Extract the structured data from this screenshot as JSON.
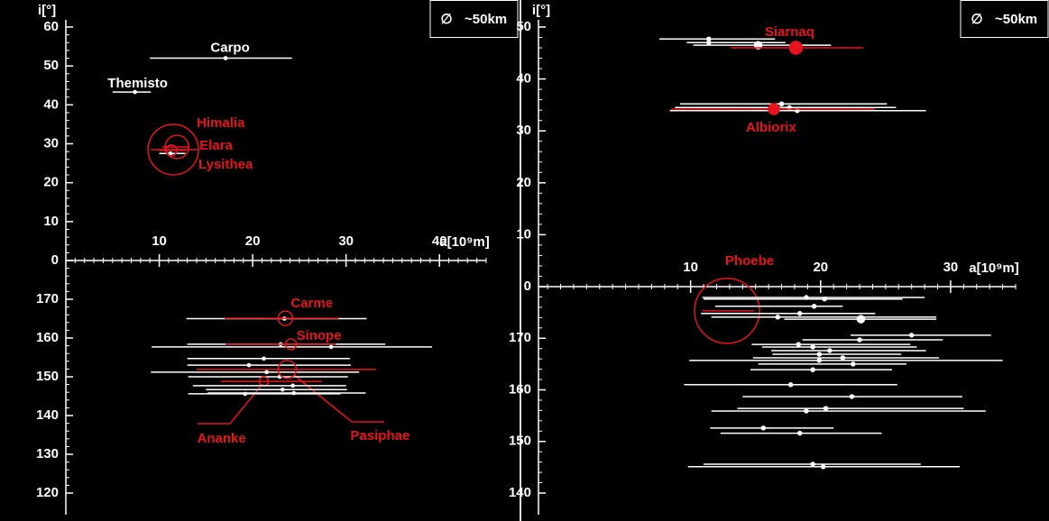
{
  "chart_data": [
    {
      "type": "orbit",
      "ylabel": "i[°]",
      "xlabel": "a[10⁹m]",
      "legend_symbol": "∅",
      "legend": "~50km",
      "legend_loc": "upper right",
      "color": "#ffffff",
      "xlim": [
        0,
        45
      ],
      "xticks": [
        10,
        20,
        30,
        40
      ],
      "x_minor_step": 1,
      "ylim": [
        0,
        60
      ],
      "yticks": [
        0,
        10,
        20,
        30,
        40,
        50,
        60
      ],
      "y2lim": [
        180,
        120
      ],
      "y2ticks": [
        170,
        160,
        150,
        140,
        130,
        120
      ],
      "y_minor_step": 2,
      "points": [
        {
          "a": 17.1,
          "q": 9.0,
          "Q": 24.2,
          "i": 52,
          "size": 8,
          "label": "Carpo"
        },
        {
          "a": 7.4,
          "q": 5.0,
          "Q": 9.1,
          "i": 43.3,
          "size": 8,
          "label": "Themisto"
        },
        {
          "a": 11.2,
          "q": 10.0,
          "Q": 12.8,
          "i": 27.5,
          "size": 8
        },
        {
          "a": 11.5,
          "q": 9.1,
          "Q": 14.2,
          "i": 28.5,
          "size": 140,
          "color": "#e8141b",
          "hollow": true,
          "label": "Himalia"
        },
        {
          "a": 11.9,
          "q": 10.3,
          "Q": 13.2,
          "i": 29.2,
          "size": 65,
          "color": "#e8141b",
          "hollow": true,
          "label": "Elara"
        },
        {
          "a": 11.3,
          "q": 10.0,
          "Q": 12.9,
          "i": 28.3,
          "size": 30,
          "color": "#e8141b",
          "hollow": true,
          "label": "Lysithea"
        },
        {
          "a": 23.4,
          "q": 12.9,
          "Q": 32.2,
          "i": 165.0,
          "size": 8,
          "axis": "y2"
        },
        {
          "a": 23.5,
          "q": 17.0,
          "Q": 29.2,
          "i": 165.1,
          "size": 40,
          "color": "#e8141b",
          "hollow": true,
          "label": "Carme",
          "axis": "y2"
        },
        {
          "a": 28.4,
          "q": 9.2,
          "Q": 39.2,
          "i": 157.7,
          "size": 8,
          "axis": "y2"
        },
        {
          "a": 23.0,
          "q": 13.0,
          "Q": 34.2,
          "i": 158.4,
          "size": 8,
          "axis": "y2"
        },
        {
          "a": 24.1,
          "q": 17.1,
          "Q": 28.9,
          "i": 158.4,
          "size": 30,
          "color": "#e8141b",
          "hollow": true,
          "label": "Sinope",
          "axis": "y2"
        },
        {
          "a": 21.2,
          "q": 13.0,
          "Q": 30.4,
          "i": 154.7,
          "size": 8,
          "axis": "y2"
        },
        {
          "a": 19.6,
          "q": 13.0,
          "Q": 30.5,
          "i": 153.0,
          "size": 8,
          "axis": "y2"
        },
        {
          "a": 21.5,
          "q": 9.1,
          "Q": 31.4,
          "i": 151.2,
          "size": 8,
          "axis": "y2"
        },
        {
          "a": 22.9,
          "q": 13.1,
          "Q": 30.2,
          "i": 150.0,
          "size": 8,
          "axis": "y2"
        },
        {
          "a": 23.7,
          "q": 14.0,
          "Q": 33.2,
          "i": 151.9,
          "size": 50,
          "color": "#e8141b",
          "hollow": true,
          "label": "Pasiphae",
          "axis": "y2"
        },
        {
          "a": 21.2,
          "q": 16.6,
          "Q": 27.4,
          "i": 148.8,
          "size": 25,
          "color": "#e8141b",
          "hollow": true,
          "label": "Ananke",
          "axis": "y2"
        },
        {
          "a": 24.3,
          "q": 13.6,
          "Q": 30.0,
          "i": 147.7,
          "size": 8,
          "axis": "y2"
        },
        {
          "a": 23.2,
          "q": 15.0,
          "Q": 30.1,
          "i": 146.7,
          "size": 8,
          "axis": "y2"
        },
        {
          "a": 24.4,
          "q": 15.2,
          "Q": 32.1,
          "i": 145.8,
          "size": 8,
          "axis": "y2"
        },
        {
          "a": 19.2,
          "q": 13.1,
          "Q": 29.4,
          "i": 145.6,
          "size": 8,
          "axis": "y2"
        }
      ]
    },
    {
      "type": "orbit",
      "ylabel": "i[°]",
      "xlabel": "a[10⁹m]",
      "legend_symbol": "∅",
      "legend": "~50km",
      "legend_loc": "upper right",
      "color": "#ffffff",
      "xlim": [
        -1.7,
        35
      ],
      "xticks": [
        10,
        20,
        30
      ],
      "x_minor_step": 1,
      "ylim": [
        0,
        50
      ],
      "yticks": [
        0,
        10,
        20,
        30,
        40,
        50
      ],
      "y2lim": [
        180,
        140
      ],
      "y2ticks": [
        170,
        160,
        150,
        140
      ],
      "y_minor_step": 2,
      "points": [
        {
          "a": 11.4,
          "q": 7.6,
          "Q": 16.5,
          "i": 47.7,
          "size": 10
        },
        {
          "a": 11.4,
          "q": 9.7,
          "Q": 17.3,
          "i": 47.0,
          "size": 10
        },
        {
          "a": 15.2,
          "q": 10.2,
          "Q": 20.8,
          "i": 46.5,
          "size": 20
        },
        {
          "a": 18.1,
          "q": 13.1,
          "Q": 23.3,
          "i": 46.0,
          "size": 35,
          "color": "#e8141b",
          "label": "Siarnaq"
        },
        {
          "a": 17.0,
          "q": 9.2,
          "Q": 25.1,
          "i": 35.2,
          "size": 10
        },
        {
          "a": 17.6,
          "q": 8.8,
          "Q": 25.8,
          "i": 34.5,
          "size": 10
        },
        {
          "a": 18.2,
          "q": 8.4,
          "Q": 28.1,
          "i": 33.9,
          "size": 10
        },
        {
          "a": 16.4,
          "q": 8.5,
          "Q": 24.2,
          "i": 34.2,
          "size": 30,
          "color": "#e8141b",
          "label": "Albiorix"
        },
        {
          "a": 12.8,
          "q": 10.9,
          "Q": 14.9,
          "i": 175.3,
          "size": 180,
          "color": "#e8141b",
          "hollow": true,
          "label": "Phoebe",
          "axis": "y2"
        },
        {
          "a": 18.9,
          "q": 10.9,
          "Q": 28.0,
          "i": 177.9,
          "size": 10,
          "axis": "y2"
        },
        {
          "a": 20.3,
          "q": 11.0,
          "Q": 26.3,
          "i": 177.6,
          "size": 10,
          "axis": "y2"
        },
        {
          "a": 19.5,
          "q": 11.9,
          "Q": 21.7,
          "i": 176.2,
          "size": 10,
          "axis": "y2"
        },
        {
          "a": 18.4,
          "q": 10.8,
          "Q": 24.2,
          "i": 174.8,
          "size": 10,
          "axis": "y2"
        },
        {
          "a": 16.7,
          "q": 11.6,
          "Q": 28.9,
          "i": 174.1,
          "size": 10,
          "axis": "y2"
        },
        {
          "a": 23.1,
          "q": 17.2,
          "Q": 28.9,
          "i": 173.7,
          "size": 20,
          "axis": "y2"
        },
        {
          "a": 27.0,
          "q": 22.3,
          "Q": 33.1,
          "i": 170.6,
          "size": 10,
          "axis": "y2"
        },
        {
          "a": 23.0,
          "q": 18.6,
          "Q": 29.4,
          "i": 169.7,
          "size": 10,
          "axis": "y2"
        },
        {
          "a": 18.3,
          "q": 14.7,
          "Q": 26.9,
          "i": 168.8,
          "size": 10,
          "axis": "y2"
        },
        {
          "a": 19.4,
          "q": 15.5,
          "Q": 27.4,
          "i": 168.3,
          "size": 10,
          "axis": "y2"
        },
        {
          "a": 20.7,
          "q": 16.2,
          "Q": 28.1,
          "i": 167.6,
          "size": 10,
          "axis": "y2"
        },
        {
          "a": 19.9,
          "q": 16.3,
          "Q": 26.2,
          "i": 166.9,
          "size": 10,
          "axis": "y2"
        },
        {
          "a": 21.7,
          "q": 14.8,
          "Q": 29.1,
          "i": 166.2,
          "size": 10,
          "axis": "y2"
        },
        {
          "a": 19.9,
          "q": 9.9,
          "Q": 34.0,
          "i": 165.7,
          "size": 10,
          "axis": "y2"
        },
        {
          "a": 22.5,
          "q": 15.2,
          "Q": 26.6,
          "i": 165.0,
          "size": 10,
          "axis": "y2"
        },
        {
          "a": 19.4,
          "q": 14.6,
          "Q": 25.5,
          "i": 163.9,
          "size": 10,
          "axis": "y2"
        },
        {
          "a": 17.7,
          "q": 9.5,
          "Q": 25.9,
          "i": 161.0,
          "size": 10,
          "axis": "y2"
        },
        {
          "a": 22.4,
          "q": 14.0,
          "Q": 30.9,
          "i": 158.7,
          "size": 10,
          "axis": "y2"
        },
        {
          "a": 20.4,
          "q": 13.6,
          "Q": 31.0,
          "i": 156.4,
          "size": 10,
          "axis": "y2"
        },
        {
          "a": 18.9,
          "q": 11.6,
          "Q": 32.7,
          "i": 155.9,
          "size": 10,
          "axis": "y2"
        },
        {
          "a": 15.6,
          "q": 11.5,
          "Q": 21.0,
          "i": 152.6,
          "size": 10,
          "axis": "y2"
        },
        {
          "a": 18.4,
          "q": 12.3,
          "Q": 24.7,
          "i": 151.6,
          "size": 10,
          "axis": "y2"
        },
        {
          "a": 19.4,
          "q": 11.0,
          "Q": 27.7,
          "i": 145.6,
          "size": 10,
          "axis": "y2"
        },
        {
          "a": 20.2,
          "q": 9.8,
          "Q": 30.7,
          "i": 145.1,
          "size": 10,
          "axis": "y2"
        }
      ]
    }
  ]
}
